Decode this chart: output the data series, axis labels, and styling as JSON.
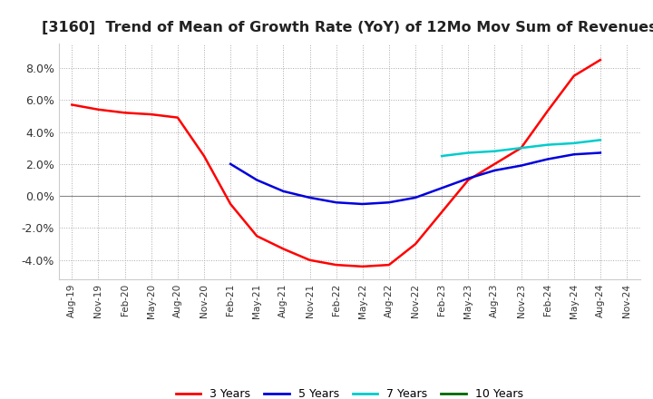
{
  "title": "[3160]  Trend of Mean of Growth Rate (YoY) of 12Mo Mov Sum of Revenues",
  "title_fontsize": 11.5,
  "ylim": [
    -0.052,
    0.095
  ],
  "yticks": [
    -0.04,
    -0.02,
    0.0,
    0.02,
    0.04,
    0.06,
    0.08
  ],
  "background_color": "#ffffff",
  "grid_color": "#aaaaaa",
  "legend_labels": [
    "3 Years",
    "5 Years",
    "7 Years",
    "10 Years"
  ],
  "legend_colors": [
    "#ff0000",
    "#0000dd",
    "#00cccc",
    "#006600"
  ],
  "x_tick_labels": [
    "Aug-19",
    "Nov-19",
    "Feb-20",
    "May-20",
    "Aug-20",
    "Nov-20",
    "Feb-21",
    "May-21",
    "Aug-21",
    "Nov-21",
    "Feb-22",
    "May-22",
    "Aug-22",
    "Nov-22",
    "Feb-23",
    "May-23",
    "Aug-23",
    "Nov-23",
    "Feb-24",
    "May-24",
    "Aug-24",
    "Nov-24"
  ],
  "series_3y_x": [
    0,
    1,
    2,
    3,
    4,
    5,
    6,
    7,
    8,
    9,
    10,
    11,
    12,
    13,
    14,
    15,
    16,
    17,
    18,
    19,
    20
  ],
  "series_3y_y": [
    0.057,
    0.054,
    0.052,
    0.051,
    0.049,
    0.025,
    -0.005,
    -0.025,
    -0.033,
    -0.04,
    -0.043,
    -0.044,
    -0.043,
    -0.03,
    -0.01,
    0.01,
    0.02,
    0.03,
    0.053,
    0.075,
    0.085
  ],
  "series_5y_x": [
    6,
    7,
    8,
    9,
    10,
    11,
    12,
    13,
    14,
    15,
    16,
    17,
    18,
    19,
    20
  ],
  "series_5y_y": [
    0.02,
    0.01,
    0.003,
    -0.001,
    -0.004,
    -0.005,
    -0.004,
    -0.001,
    0.005,
    0.011,
    0.016,
    0.019,
    0.023,
    0.026,
    0.027
  ],
  "series_7y_x": [
    14,
    15,
    16,
    17,
    18,
    19,
    20
  ],
  "series_7y_y": [
    0.025,
    0.027,
    0.028,
    0.03,
    0.032,
    0.033,
    0.035
  ],
  "series_10y_x": [],
  "series_10y_y": []
}
